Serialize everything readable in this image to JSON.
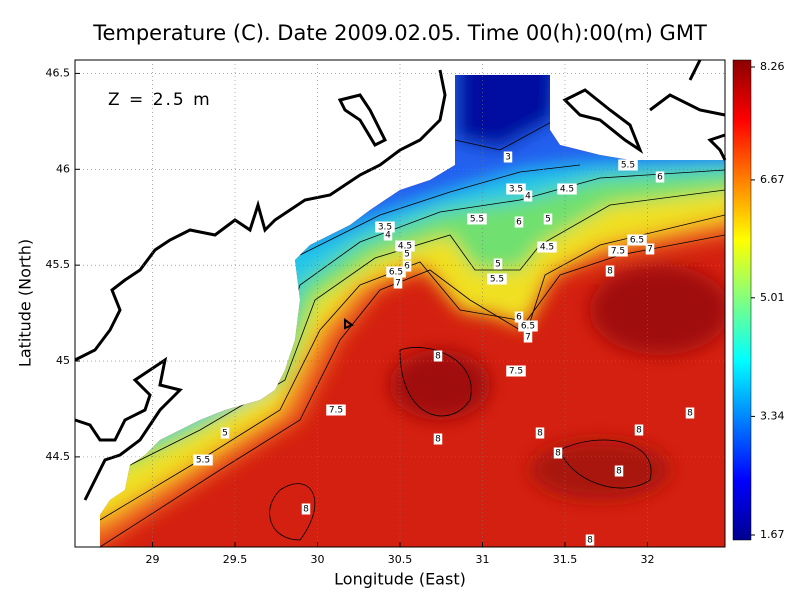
{
  "chart_data": {
    "type": "heatmap",
    "title": "Temperature (C). Date 2009.02.05. Time 00(h):00(m) GMT",
    "annotation": "Z = 2.5 m",
    "x_label": "Longitude (East)",
    "y_label": "Latitude (North)",
    "xlim": [
      28.53,
      32.47
    ],
    "ylim": [
      44.03,
      46.57
    ],
    "xticks": [
      29,
      29.5,
      30,
      30.5,
      31,
      31.5,
      32
    ],
    "yticks": [
      44.5,
      45,
      45.5,
      46,
      46.5
    ],
    "grid": true,
    "colorbar": {
      "lim": [
        1.67,
        8.26
      ],
      "ticks": [
        1.67,
        3.34,
        5.01,
        6.67,
        8.26
      ],
      "colors": [
        "#00008f",
        "#0000ff",
        "#0080ff",
        "#00ffff",
        "#80ff80",
        "#ffff00",
        "#ff8000",
        "#ff0000",
        "#8b0000"
      ]
    },
    "contour_labels": [
      3,
      5.5,
      6,
      3.5,
      4,
      4.5,
      3.5,
      4,
      5.5,
      6,
      5,
      4.5,
      5,
      6,
      6.5,
      7,
      6.5,
      7,
      7.5,
      4.5,
      5,
      5.5,
      8,
      6,
      6.5,
      7,
      8,
      7.5,
      7.5,
      5,
      5.5,
      8,
      8,
      8,
      8,
      8,
      8,
      8,
      8
    ]
  }
}
